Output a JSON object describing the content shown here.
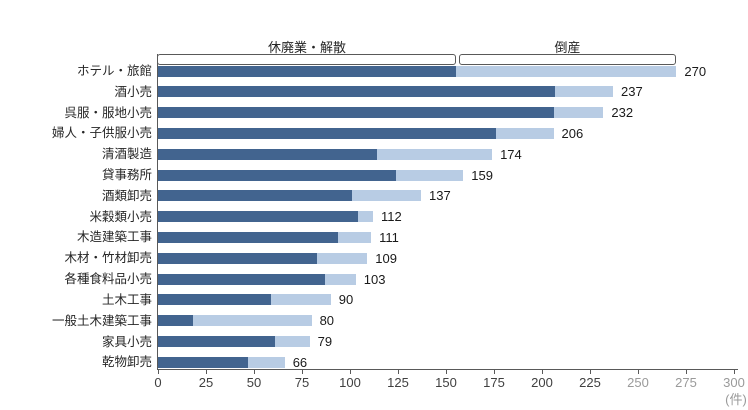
{
  "chart_data": {
    "type": "bar",
    "orientation": "horizontal",
    "stacked": true,
    "unit_label": "(件)",
    "categories": [
      "ホテル・旅館",
      "酒小売",
      "呉服・服地小売",
      "婦人・子供服小売",
      "清酒製造",
      "貸事務所",
      "酒類卸売",
      "米穀類小売",
      "木造建築工事",
      "木材・竹材卸売",
      "各種食料品小売",
      "土木工事",
      "一般土木建築工事",
      "家具小売",
      "乾物卸売"
    ],
    "series": [
      {
        "name": "休廃業・解散",
        "color": "#42648F",
        "values": [
          155,
          207,
          206,
          176,
          114,
          124,
          101,
          104,
          94,
          83,
          87,
          59,
          18,
          61,
          47
        ]
      },
      {
        "name": "倒産",
        "color": "#B8CCE4",
        "values": [
          115,
          30,
          26,
          30,
          60,
          35,
          36,
          8,
          17,
          26,
          16,
          31,
          62,
          18,
          19
        ]
      }
    ],
    "totals": [
      270,
      237,
      232,
      206,
      174,
      159,
      137,
      112,
      111,
      109,
      103,
      90,
      80,
      79,
      66
    ],
    "x_ticks": [
      0,
      25,
      50,
      75,
      100,
      125,
      150,
      175,
      200,
      225,
      250,
      275,
      300
    ],
    "x_ticks_faded_from": 250,
    "xlim": [
      0,
      300
    ],
    "grid": false,
    "legend_position": "top-brackets",
    "axis_color": "#595959",
    "tick_label_color": "#404040",
    "tick_label_faded_color": "#9a9a9a"
  }
}
